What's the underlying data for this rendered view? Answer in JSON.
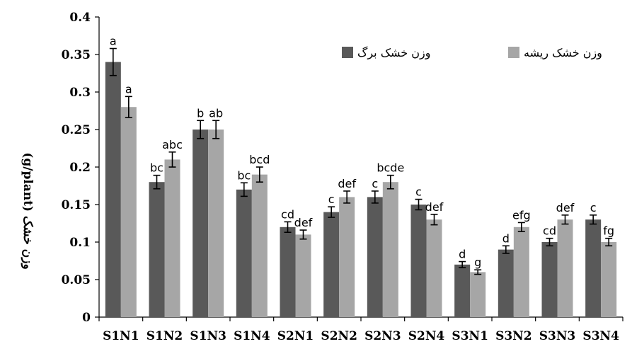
{
  "chart_data": {
    "type": "bar",
    "ylabel": "وزن خشک (g/plant)",
    "ylim": [
      0,
      0.4
    ],
    "yticks": [
      "0",
      "0.05",
      "0.1",
      "0.15",
      "0.2",
      "0.25",
      "0.3",
      "0.35",
      "0.4"
    ],
    "ytick_values": [
      0,
      0.05,
      0.1,
      0.15,
      0.2,
      0.25,
      0.3,
      0.35,
      0.4
    ],
    "categories": [
      "S1N1",
      "S1N2",
      "S1N3",
      "S1N4",
      "S2N1",
      "S2N2",
      "S2N3",
      "S2N4",
      "S3N1",
      "S3N2",
      "S3N3",
      "S3N4"
    ],
    "legend_position": "top-right",
    "grid": false,
    "series": [
      {
        "name": "وزن خشک برگ",
        "color": "#595959",
        "values": [
          0.34,
          0.18,
          0.25,
          0.17,
          0.12,
          0.14,
          0.16,
          0.15,
          0.07,
          0.09,
          0.1,
          0.13
        ],
        "errors": [
          0.018,
          0.009,
          0.012,
          0.009,
          0.007,
          0.007,
          0.008,
          0.007,
          0.004,
          0.005,
          0.005,
          0.006
        ],
        "significance": [
          "a",
          "bc",
          "b",
          "bc",
          "cd",
          "c",
          "c",
          "c",
          "d",
          "d",
          "cd",
          "c"
        ]
      },
      {
        "name": "وزن خشک ریشه",
        "color": "#a6a6a6",
        "values": [
          0.28,
          0.21,
          0.25,
          0.19,
          0.11,
          0.16,
          0.18,
          0.13,
          0.06,
          0.12,
          0.13,
          0.1
        ],
        "errors": [
          0.014,
          0.01,
          0.012,
          0.01,
          0.006,
          0.008,
          0.009,
          0.007,
          0.003,
          0.006,
          0.006,
          0.005
        ],
        "significance": [
          "a",
          "abc",
          "ab",
          "bcd",
          "def",
          "def",
          "bcde",
          "def",
          "g",
          "efg",
          "def",
          "fg"
        ]
      }
    ]
  }
}
